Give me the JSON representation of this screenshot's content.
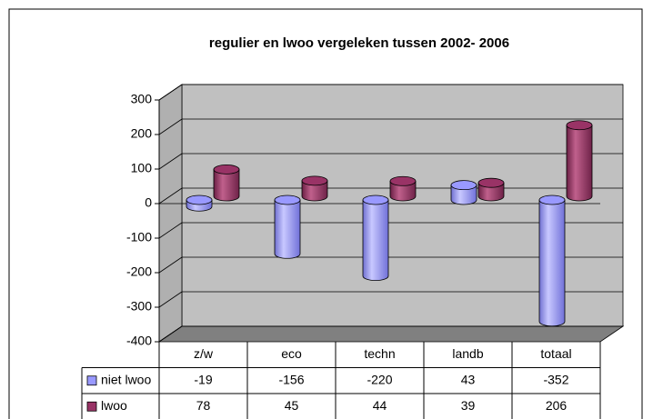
{
  "chart_data": {
    "type": "bar3d",
    "title": "regulier en lwoo vergeleken tussen 2002- 2006",
    "categories": [
      "z/w",
      "eco",
      "techn",
      "landb",
      "totaal"
    ],
    "series": [
      {
        "name": "niet lwoo",
        "color": "#9999ff",
        "values": [
          -19,
          -156,
          -220,
          43,
          -352
        ]
      },
      {
        "name": "lwoo",
        "color": "#993366",
        "values": [
          78,
          45,
          44,
          39,
          206
        ]
      }
    ],
    "ylim": [
      -400,
      300
    ],
    "yticks": [
      -400,
      -300,
      -200,
      -100,
      0,
      100,
      200,
      300
    ],
    "grid": true,
    "data_table": true
  }
}
